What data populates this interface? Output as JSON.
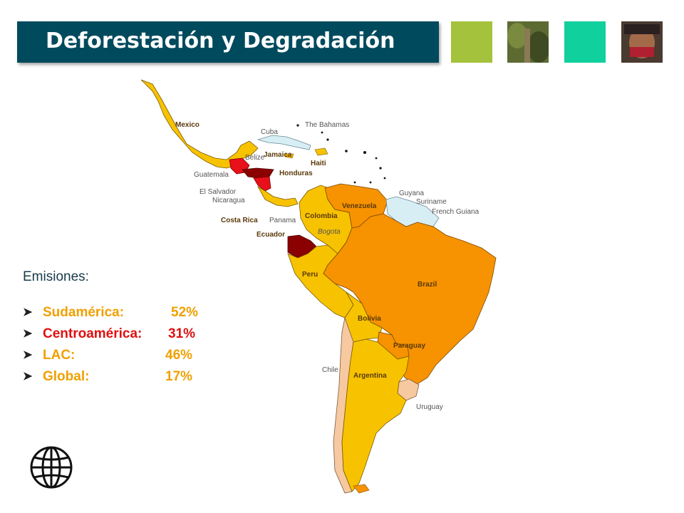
{
  "header": {
    "title": "Deforestación y Degradación"
  },
  "photos": [
    {
      "name": "green-tile",
      "color": "#a4c23c"
    },
    {
      "name": "forest-photo",
      "color": "#4c5a2a"
    },
    {
      "name": "teal-tile",
      "color": "#10d09e"
    },
    {
      "name": "child-photo",
      "color": "#6b4a36"
    }
  ],
  "emissions": {
    "title": "Emisiones:",
    "items": [
      {
        "label": "Sudamérica:",
        "value": "52%",
        "color": "#f0a000"
      },
      {
        "label": "Centroamérica:",
        "value": "31%",
        "color": "#e01010"
      },
      {
        "label": "LAC:",
        "value": "46%",
        "color": "#f0a000"
      },
      {
        "label": "Global:",
        "value": "17%",
        "color": "#f0a000"
      }
    ]
  },
  "map": {
    "colors": {
      "yellow": "#f7c200",
      "orange": "#f79200",
      "darkred": "#8b0000",
      "red": "#e8101a",
      "lightblue": "#d8eef5",
      "peach": "#f7c9a0"
    },
    "labels": {
      "mexico": "Mexico",
      "cuba": "Cuba",
      "bahamas": "The Bahamas",
      "belize": "Belize",
      "jamaica": "Jamaica",
      "haiti": "Haiti",
      "guatemala": "Guatemala",
      "honduras": "Honduras",
      "el_salvador": "El Salvador",
      "nicaragua": "Nicaragua",
      "costa_rica": "Costa Rica",
      "panama": "Panama",
      "colombia": "Colombia",
      "venezuela": "Venezuela",
      "guyana": "Guyana",
      "suriname": "Suriname",
      "french_guiana": "French Guiana",
      "bogota": "Bogota",
      "ecuador": "Ecuador",
      "peru": "Peru",
      "brazil": "Brazil",
      "bolivia": "Bolivia",
      "paraguay": "Paraguay",
      "chile": "Chile",
      "argentina": "Argentina",
      "uruguay": "Uruguay"
    }
  }
}
